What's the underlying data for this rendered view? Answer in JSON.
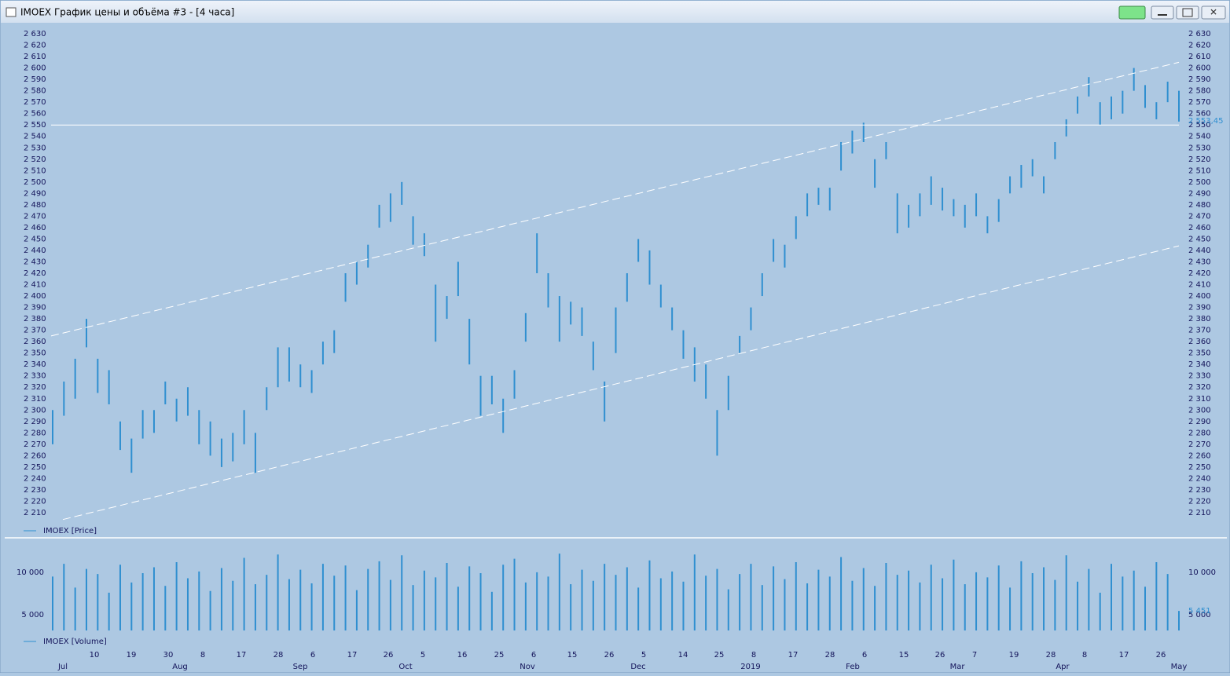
{
  "window": {
    "title": "IMOEX График цены и объёма #3 - [4 часа]"
  },
  "time_axis": {
    "days": [
      "10",
      "19",
      "30",
      "8",
      "17",
      "28",
      "6",
      "17",
      "26",
      "5",
      "16",
      "25",
      "6",
      "15",
      "26",
      "5",
      "14",
      "25",
      "8",
      "17",
      "28",
      "6",
      "15",
      "26",
      "7",
      "19",
      "28",
      "8",
      "17",
      "26"
    ],
    "months": [
      "Jul",
      "Aug",
      "Sep",
      "Oct",
      "Nov",
      "Dec",
      "2019",
      "Feb",
      "Mar",
      "Apr",
      "May"
    ]
  },
  "chart_data": [
    {
      "type": "range-bar",
      "ylim": [
        2200,
        2640
      ],
      "yticks": [
        {
          "value": 2210,
          "label": "2 210"
        },
        {
          "value": 2220,
          "label": "2 220"
        },
        {
          "value": 2230,
          "label": "2 230"
        },
        {
          "value": 2240,
          "label": "2 240"
        },
        {
          "value": 2250,
          "label": "2 250"
        },
        {
          "value": 2260,
          "label": "2 260"
        },
        {
          "value": 2270,
          "label": "2 270"
        },
        {
          "value": 2280,
          "label": "2 280"
        },
        {
          "value": 2290,
          "label": "2 290"
        },
        {
          "value": 2300,
          "label": "2 300"
        },
        {
          "value": 2310,
          "label": "2 310"
        },
        {
          "value": 2320,
          "label": "2 320"
        },
        {
          "value": 2330,
          "label": "2 330"
        },
        {
          "value": 2340,
          "label": "2 340"
        },
        {
          "value": 2350,
          "label": "2 350"
        },
        {
          "value": 2360,
          "label": "2 360"
        },
        {
          "value": 2370,
          "label": "2 370"
        },
        {
          "value": 2380,
          "label": "2 380"
        },
        {
          "value": 2390,
          "label": "2 390"
        },
        {
          "value": 2400,
          "label": "2 400"
        },
        {
          "value": 2410,
          "label": "2 410"
        },
        {
          "value": 2420,
          "label": "2 420"
        },
        {
          "value": 2430,
          "label": "2 430"
        },
        {
          "value": 2440,
          "label": "2 440"
        },
        {
          "value": 2450,
          "label": "2 450"
        },
        {
          "value": 2460,
          "label": "2 460"
        },
        {
          "value": 2470,
          "label": "2 470"
        },
        {
          "value": 2480,
          "label": "2 480"
        },
        {
          "value": 2490,
          "label": "2 490"
        },
        {
          "value": 2500,
          "label": "2 500"
        },
        {
          "value": 2510,
          "label": "2 510"
        },
        {
          "value": 2520,
          "label": "2 520"
        },
        {
          "value": 2530,
          "label": "2 530"
        },
        {
          "value": 2540,
          "label": "2 540"
        },
        {
          "value": 2550,
          "label": "2 550"
        },
        {
          "value": 2560,
          "label": "2 560"
        },
        {
          "value": 2570,
          "label": "2 570"
        },
        {
          "value": 2580,
          "label": "2 580"
        },
        {
          "value": 2590,
          "label": "2 590"
        },
        {
          "value": 2600,
          "label": "2 600"
        },
        {
          "value": 2610,
          "label": "2 610"
        },
        {
          "value": 2620,
          "label": "2 620"
        },
        {
          "value": 2630,
          "label": "2 630"
        }
      ],
      "series": [
        {
          "name": "IMOEX [Price]",
          "color": "#2f8fd0",
          "low": [
            2270,
            2295,
            2310,
            2355,
            2315,
            2305,
            2265,
            2245,
            2275,
            2280,
            2305,
            2290,
            2295,
            2270,
            2260,
            2250,
            2255,
            2270,
            2245,
            2300,
            2320,
            2325,
            2320,
            2315,
            2340,
            2350,
            2395,
            2410,
            2425,
            2460,
            2465,
            2480,
            2445,
            2435,
            2360,
            2380,
            2400,
            2340,
            2295,
            2305,
            2280,
            2310,
            2360,
            2420,
            2390,
            2360,
            2375,
            2365,
            2335,
            2290,
            2350,
            2395,
            2430,
            2410,
            2390,
            2370,
            2345,
            2325,
            2310,
            2260,
            2300,
            2350,
            2370,
            2400,
            2430,
            2425,
            2450,
            2470,
            2480,
            2475,
            2510,
            2525,
            2535,
            2495,
            2520,
            2455,
            2460,
            2470,
            2480,
            2475,
            2470,
            2460,
            2470,
            2455,
            2465,
            2490,
            2495,
            2505,
            2490,
            2520,
            2540,
            2560,
            2575,
            2550,
            2555,
            2560,
            2580,
            2565,
            2555,
            2570,
            2553
          ],
          "high": [
            2300,
            2325,
            2345,
            2380,
            2345,
            2335,
            2290,
            2275,
            2300,
            2300,
            2325,
            2310,
            2320,
            2300,
            2290,
            2275,
            2280,
            2300,
            2280,
            2320,
            2355,
            2355,
            2340,
            2335,
            2360,
            2370,
            2420,
            2430,
            2445,
            2480,
            2490,
            2500,
            2470,
            2455,
            2410,
            2400,
            2430,
            2380,
            2330,
            2330,
            2310,
            2335,
            2385,
            2455,
            2420,
            2400,
            2395,
            2390,
            2360,
            2325,
            2390,
            2420,
            2450,
            2440,
            2410,
            2390,
            2370,
            2355,
            2340,
            2300,
            2330,
            2365,
            2390,
            2420,
            2450,
            2445,
            2470,
            2490,
            2495,
            2495,
            2535,
            2545,
            2552,
            2520,
            2535,
            2490,
            2480,
            2490,
            2505,
            2495,
            2485,
            2480,
            2490,
            2470,
            2485,
            2505,
            2515,
            2520,
            2505,
            2535,
            2555,
            2575,
            2592,
            2570,
            2575,
            2580,
            2600,
            2585,
            2570,
            2588,
            2580
          ]
        }
      ],
      "level_line": 2550,
      "last_price": {
        "value": 2553.45,
        "label": "2 553,45"
      },
      "trend_lines": [
        {
          "start": 2365,
          "end": 2605
        },
        {
          "start": 2204,
          "end": 2444
        }
      ]
    },
    {
      "type": "bar",
      "ylim": [
        3150,
        13600
      ],
      "yticks": [
        {
          "value": 5000,
          "label": "5 000"
        },
        {
          "value": 10000,
          "label": "10 000"
        }
      ],
      "series": [
        {
          "name": "IMOEX [Volume]",
          "color": "#2f8fd0",
          "values": [
            9500,
            11000,
            8200,
            10400,
            9800,
            7600,
            10900,
            8800,
            9900,
            10600,
            8400,
            11200,
            9300,
            10100,
            7800,
            10500,
            9000,
            11700,
            8600,
            9700,
            12100,
            9200,
            10300,
            8700,
            11000,
            9600,
            10800,
            7900,
            10400,
            11300,
            9100,
            12000,
            8500,
            10200,
            9400,
            11100,
            8300,
            10700,
            9900,
            7700,
            10900,
            11600,
            8800,
            10000,
            9500,
            12200,
            8600,
            10300,
            9000,
            11000,
            9700,
            10600,
            8200,
            11400,
            9300,
            10100,
            8900,
            12100,
            9600,
            10400,
            8000,
            9800,
            11000,
            8500,
            10700,
            9200,
            11200,
            8700,
            10300,
            9500,
            11800,
            9000,
            10500,
            8400,
            11100,
            9700,
            10200,
            8800,
            10900,
            9300,
            11500,
            8600,
            10000,
            9400,
            10800,
            8200,
            11300,
            9900,
            10600,
            9100,
            12000,
            8900,
            10400,
            7600,
            11000,
            9500,
            10200,
            8300,
            11200,
            9800,
            5451
          ]
        }
      ],
      "last_value": {
        "value": 5451,
        "label": "5 451"
      }
    }
  ]
}
